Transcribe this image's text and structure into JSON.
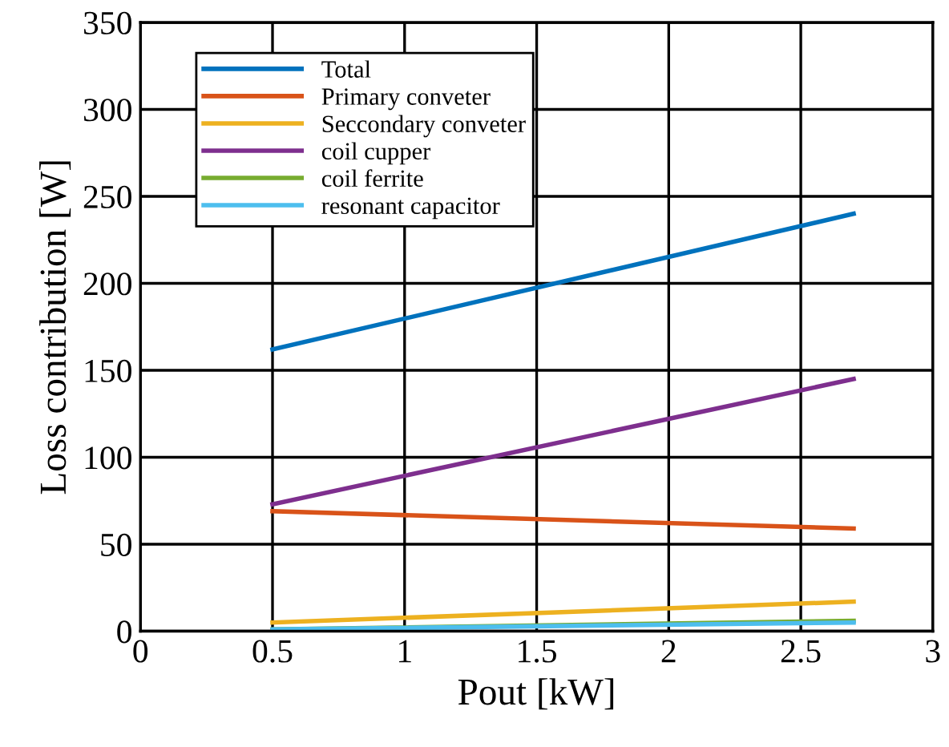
{
  "chart_data": {
    "type": "line",
    "xlabel": "Pout [kW]",
    "ylabel": "Loss contribution [W]",
    "xlim": [
      0,
      3
    ],
    "xticks": [
      0,
      0.5,
      1,
      1.5,
      2,
      2.5,
      3
    ],
    "ylim": [
      0,
      350
    ],
    "yticks": [
      0,
      50,
      100,
      150,
      200,
      250,
      300,
      350
    ],
    "grid": true,
    "legend": "top left",
    "marker": "none",
    "line_style": "solid",
    "x": [
      0.5,
      2.7
    ],
    "series": [
      {
        "name": "Total",
        "color": "#0072bd",
        "values": [
          162,
          240
        ]
      },
      {
        "name": "Primary conveter",
        "color": "#d95319",
        "values": [
          69,
          59
        ]
      },
      {
        "name": "Seccondary conveter",
        "color": "#edb120",
        "values": [
          5,
          17
        ]
      },
      {
        "name": "coil cupper",
        "color": "#7e2f8e",
        "values": [
          73,
          145
        ]
      },
      {
        "name": "coil ferrite",
        "color": "#77ac30",
        "values": [
          1,
          6
        ]
      },
      {
        "name": "resonant capacitor",
        "color": "#4dbeee",
        "values": [
          1,
          5
        ]
      }
    ]
  }
}
